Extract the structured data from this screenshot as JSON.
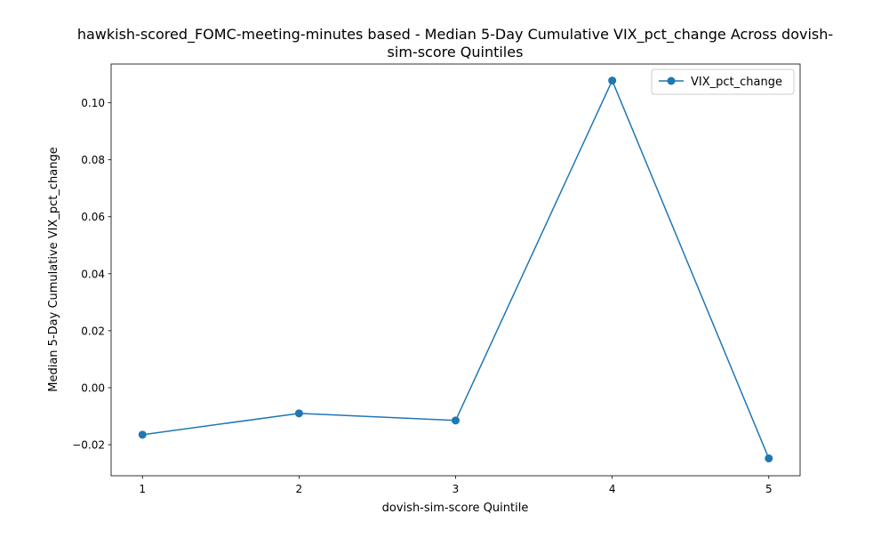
{
  "chart_data": {
    "type": "line",
    "title_lines": [
      "hawkish-scored_FOMC-meeting-minutes based - Median 5-Day Cumulative VIX_pct_change Across dovish-",
      "sim-score Quintiles"
    ],
    "xlabel": "dovish-sim-score Quintile",
    "ylabel": "Median 5-Day Cumulative VIX_pct_change",
    "x": [
      1,
      2,
      3,
      4,
      5
    ],
    "x_tick_labels": [
      "1",
      "2",
      "3",
      "4",
      "5"
    ],
    "xlim": [
      0.8,
      5.2
    ],
    "y_ticks": [
      -0.02,
      0.0,
      0.02,
      0.04,
      0.06,
      0.08,
      0.1
    ],
    "y_tick_labels": [
      "−0.02",
      "0.00",
      "0.02",
      "0.04",
      "0.06",
      "0.08",
      "0.10"
    ],
    "ylim": [
      -0.0309,
      0.1136
    ],
    "grid": false,
    "legend_position": "top-right",
    "series": [
      {
        "name": "VIX_pct_change",
        "color": "#1f77b4",
        "marker": "circle",
        "values": [
          -0.0165,
          -0.009,
          -0.0115,
          0.1078,
          -0.0248
        ]
      }
    ]
  }
}
